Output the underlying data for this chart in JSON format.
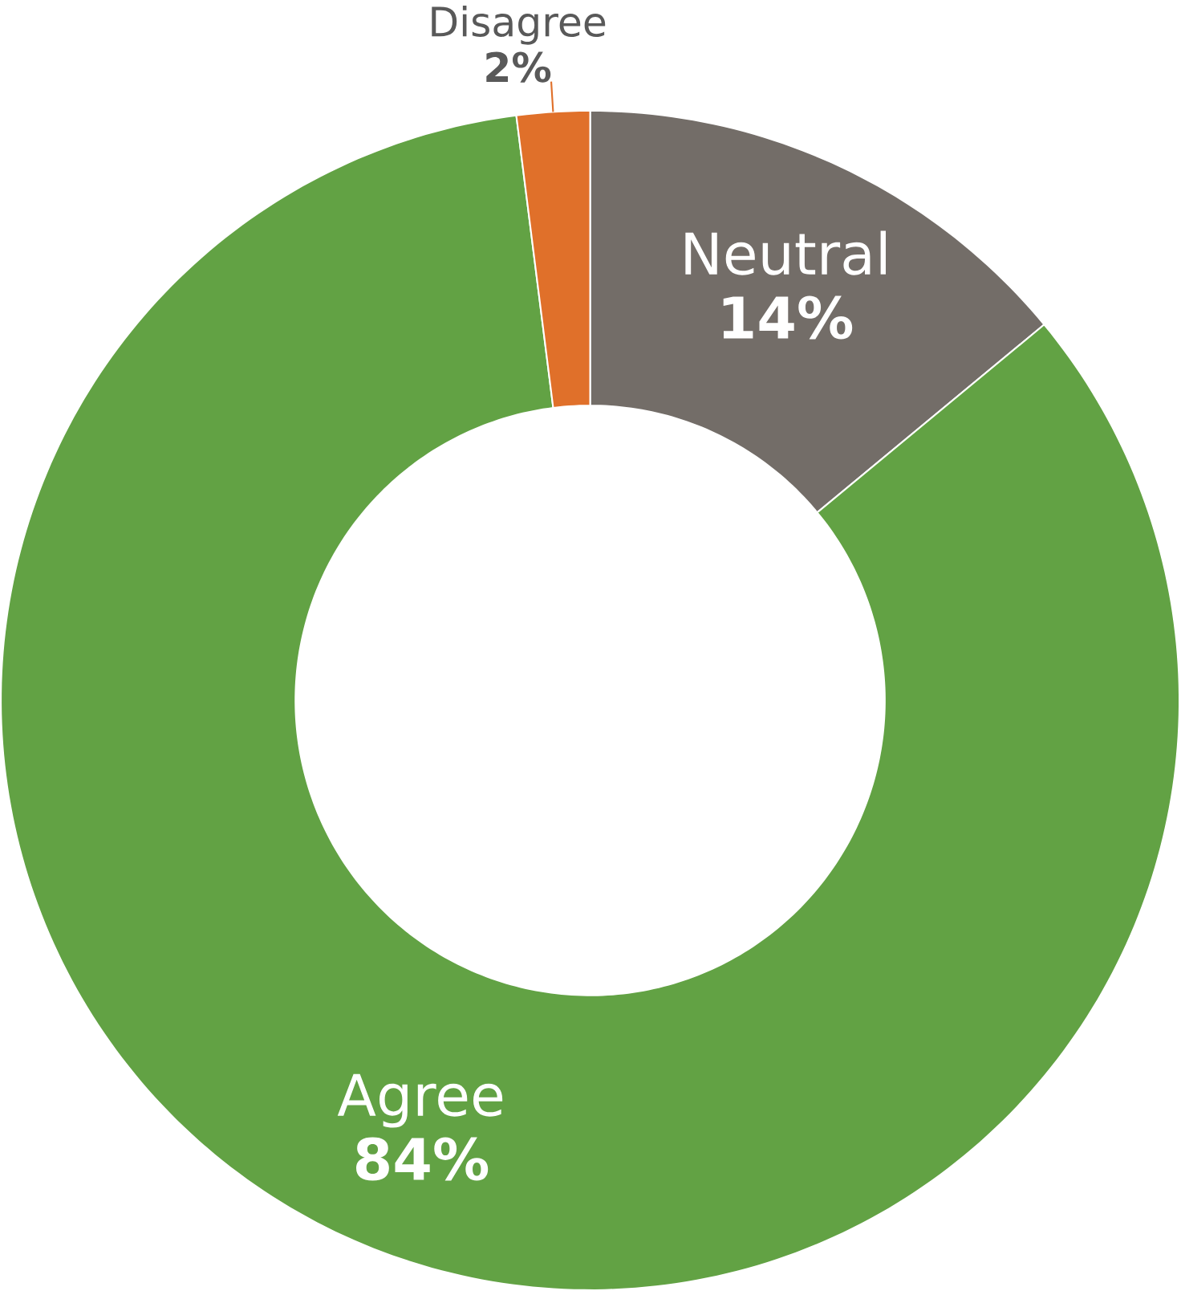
{
  "chart_data": {
    "type": "donut",
    "categories": [
      "Neutral",
      "Agree",
      "Disagree"
    ],
    "values": [
      14,
      84,
      2
    ],
    "value_labels": [
      "14%",
      "84%",
      "2%"
    ],
    "colors": [
      "#736d68",
      "#62a244",
      "#e0702a"
    ]
  }
}
